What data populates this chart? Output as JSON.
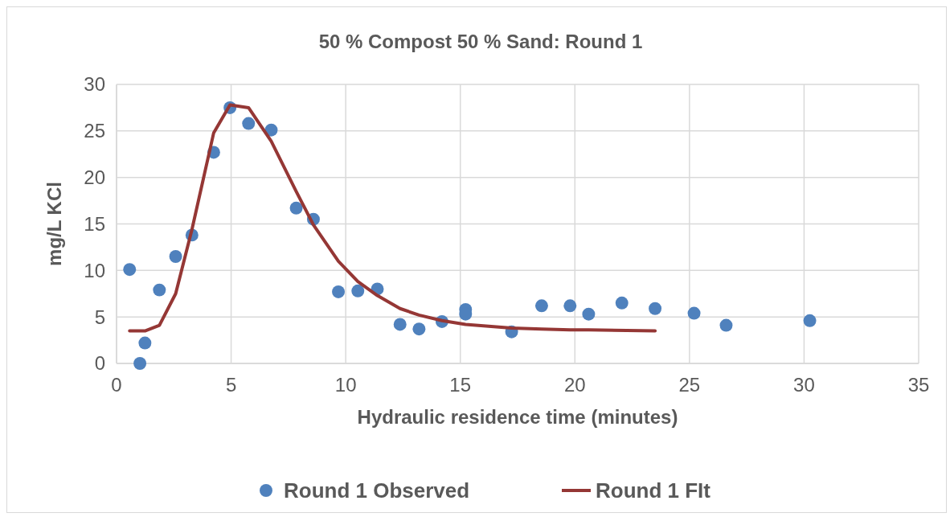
{
  "chart_data": {
    "type": "scatter",
    "title": "50 % Compost 50 % Sand: Round 1",
    "xlabel": "Hydraulic residence time (minutes)",
    "ylabel": "mg/L KCl",
    "xlim": [
      0,
      35
    ],
    "xticks": [
      0,
      5,
      10,
      15,
      20,
      25,
      30,
      35
    ],
    "ylim": [
      0,
      30
    ],
    "yticks": [
      0,
      5,
      10,
      15,
      20,
      25,
      30
    ],
    "grid": true,
    "legend": "bottom",
    "series": [
      {
        "name": "Round 1 Observed",
        "marker": "circle",
        "color": "#4f81bd",
        "x": [
          0.57,
          1.02,
          1.24,
          1.87,
          2.58,
          3.29,
          4.24,
          4.95,
          5.76,
          6.75,
          7.84,
          8.59,
          9.68,
          10.53,
          11.38,
          12.37,
          13.2,
          14.2,
          15.23,
          15.23,
          17.24,
          18.55,
          19.79,
          20.6,
          22.05,
          23.5,
          25.2,
          26.6,
          30.25
        ],
        "values": [
          10.1,
          0.0,
          2.2,
          7.9,
          11.5,
          13.8,
          22.7,
          27.5,
          25.8,
          25.1,
          16.7,
          15.5,
          7.7,
          7.8,
          8.0,
          4.2,
          3.7,
          4.5,
          5.8,
          5.3,
          3.4,
          6.2,
          6.2,
          5.3,
          6.5,
          5.9,
          5.4,
          4.1,
          4.6
        ]
      },
      {
        "name": "Round 1 FIt",
        "type": "line",
        "marker": "none",
        "line_style": "solid",
        "color": "#953735",
        "x": [
          0.57,
          1.24,
          1.87,
          2.58,
          3.29,
          4.24,
          4.95,
          5.76,
          6.75,
          7.84,
          8.59,
          9.68,
          10.53,
          11.38,
          12.37,
          13.2,
          14.2,
          15.23,
          17.24,
          18.55,
          19.79,
          20.6,
          23.5
        ],
        "values": [
          3.5,
          3.5,
          4.1,
          7.5,
          14.4,
          24.8,
          27.8,
          27.5,
          23.9,
          18.5,
          14.9,
          11.0,
          8.8,
          7.3,
          5.9,
          5.2,
          4.6,
          4.2,
          3.8,
          3.7,
          3.6,
          3.6,
          3.5
        ]
      }
    ]
  }
}
